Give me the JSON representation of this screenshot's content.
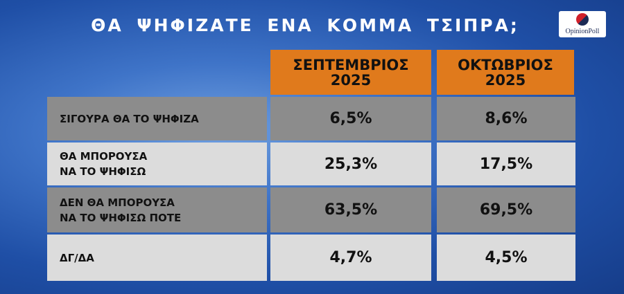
{
  "header": {
    "title": "ΘΑ ΨΗΦΙΖΑΤΕ ΕΝΑ ΚΟΜΜΑ ΤΣΙΠΡΑ;",
    "logo": "OpinionPoll"
  },
  "table": {
    "columns": [
      "ΣΕΠΤΕΜΒΡΙΟΣ\n2025",
      "ΟΚΤΩΒΡΙΟΣ\n2025"
    ],
    "rows": [
      [
        "ΣΙΓΟΥΡΑ ΘΑ ΤΟ ΨΗΦΙΖΑ",
        "6,5%",
        "8,6%"
      ],
      [
        "ΘΑ ΜΠΟΡΟΥΣΑ\nΝΑ ΤΟ ΨΗΦΙΣΩ",
        "25,3%",
        "17,5%"
      ],
      [
        "ΔΕΝ ΘΑ ΜΠΟΡΟΥΣΑ\nΝΑ ΤΟ ΨΗΦΙΣΩ ΠΟΤΕ",
        "63,5%",
        "69,5%"
      ],
      [
        "ΔΓ/ΔΑ",
        "4,7%",
        "4,5%"
      ]
    ]
  }
}
